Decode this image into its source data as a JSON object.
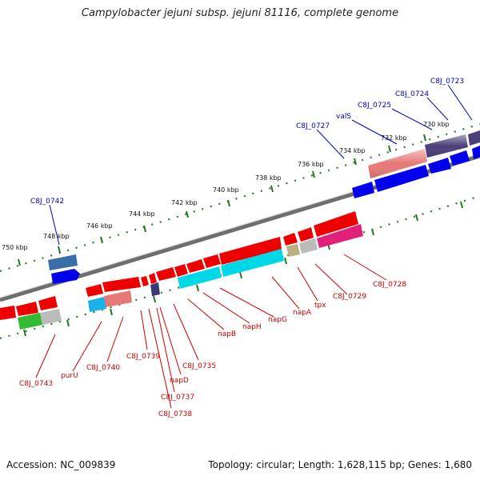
{
  "title": "Campylobacter jejuni subsp. jejuni 81116, complete genome",
  "footer": {
    "accession": "Accession: NC_009839",
    "summary": "Topology: circular; Length: 1,628,115 bp; Genes: 1,680"
  },
  "kbp_labels": [
    "730 kbp",
    "732 kbp",
    "734 kbp",
    "736 kbp",
    "738 kbp",
    "740 kbp",
    "742 kbp",
    "744 kbp",
    "746 kbp",
    "748 kbp",
    "750 kbp"
  ],
  "top_gene_labels": [
    "C8J_0723",
    "C8J_0724",
    "C8J_0725",
    "valS",
    "C8J_0727",
    "C8J_0742"
  ],
  "bottom_gene_labels": [
    "C8J_0728",
    "C8J_0729",
    "tpx",
    "napA",
    "napG",
    "napH",
    "napB",
    "C8J_0735",
    "napD",
    "C8J_0737",
    "C8J_0738",
    "C8J_0739",
    "C8J_0740",
    "purU",
    "C8J_0743"
  ],
  "colors": {
    "top_label": "#0000cc",
    "bottom_label": "#cc0000",
    "tick": "#227722",
    "backbone": "#6e6e6e"
  }
}
